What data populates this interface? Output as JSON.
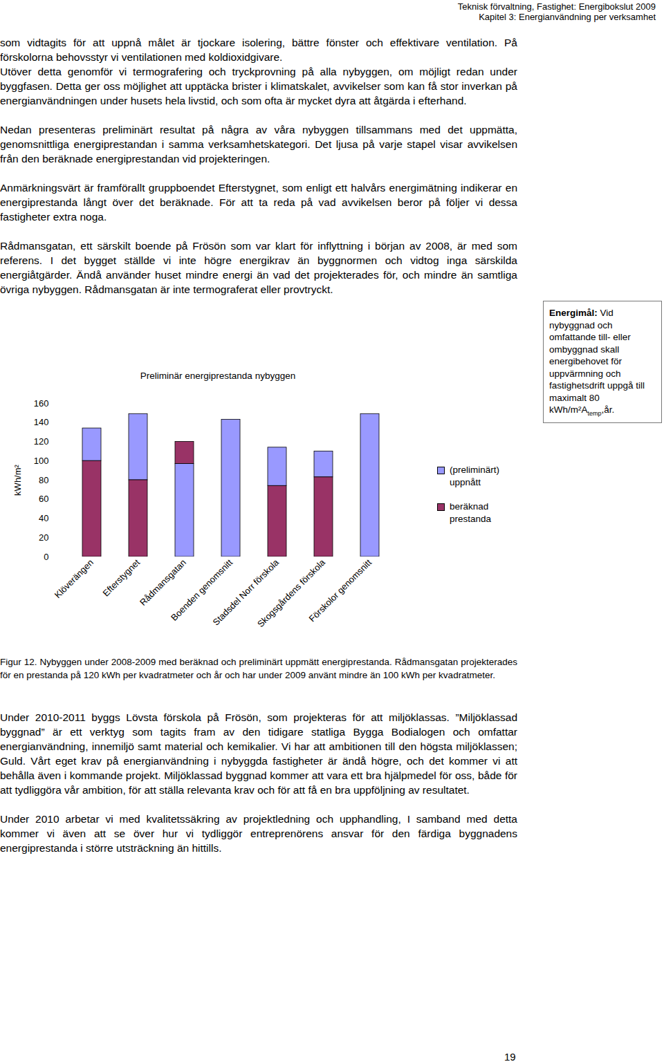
{
  "header": {
    "line1": "Teknisk förvaltning, Fastighet: Energibokslut 2009",
    "line2": "Kapitel 3: Energianvändning per verksamhet"
  },
  "paragraphs_before": [
    "som vidtagits för att uppnå målet är tjockare isolering, bättre fönster och effektivare ventilation. På förskolorna behovsstyr vi ventilationen med koldioxidgivare.",
    "Utöver detta genomför vi termografering och tryckprovning på alla nybyggen, om möjligt redan under byggfasen. Detta ger oss möjlighet att upptäcka brister i klimatskalet, avvikelser som kan få stor inverkan på energianvändningen under husets hela livstid, och som ofta är mycket dyra att åtgärda i efterhand.",
    "Nedan presenteras preliminärt resultat på några av våra nybyggen tillsammans med det uppmätta, genomsnittliga energiprestandan i samma verksamhetskategori. Det ljusa på varje stapel visar avvikelsen från den beräknade energiprestandan vid projekteringen.",
    "Anmärkningsvärt är framförallt gruppboendet Efterstygnet, som enligt ett halvårs energimätning indikerar en energiprestanda långt över det beräknade. För att ta reda på vad avvikelsen beror på följer vi dessa fastigheter extra noga.",
    "Rådmansgatan, ett särskilt boende på Frösön som var klart för inflyttning i början av 2008, är med som referens. I det bygget ställde vi inte högre energikrav än byggnormen och vidtog inga särskilda energiåtgärder. Ändå använder huset mindre energi än vad det projekterades för, och mindre än samtliga övriga nybyggen. Rådmansgatan är inte termograferat eller provtryckt."
  ],
  "sidebar": {
    "label": "Energimål:",
    "text": "Vid nybyggnad och omfattande till- eller ombyggnad skall energibehovet för uppvärmning och fastighetsdrift uppgå till maximalt 80 kWh/m²A",
    "subscript": "temp",
    "text_after": ",år."
  },
  "chart_data": {
    "type": "bar",
    "stacked": true,
    "title": "Preliminär energiprestanda nybyggen",
    "y_label": "kWh/m²",
    "categories": [
      "Klöverängen",
      "Efterstygnet",
      "Rådmansgatan",
      "Boenden genomsnitt",
      "Stadsdel Norr förskola",
      "Skogsgårdens förskola",
      "Förskolor genomsnitt"
    ],
    "series": [
      {
        "name": "(preliminärt) uppnått",
        "color": "#9999ff",
        "values": [
          34,
          69,
          97,
          143,
          40,
          27,
          149
        ]
      },
      {
        "name": "beräknad prestanda",
        "color": "#993366",
        "values": [
          100,
          80,
          23,
          null,
          74,
          83,
          null
        ]
      }
    ],
    "ylim": [
      0,
      160
    ],
    "yticks": [
      0,
      20,
      40,
      60,
      80,
      100,
      120,
      140,
      160
    ],
    "grid": false,
    "legend": "right"
  },
  "caption": {
    "label": "Figur 12.",
    "text": "Nybyggen under 2008-2009 med beräknad och preliminärt uppmätt energiprestanda. Rådmansgatan projekterades för en prestanda på 120 kWh per kvadratmeter och år och har under 2009 använt mindre än 100 kWh per kvadratmeter."
  },
  "paragraphs_after": [
    "Under 2010-2011 byggs Lövsta förskola på Frösön, som projekteras för att miljöklassas. ”Miljöklassad byggnad” är ett verktyg som tagits fram av den tidigare statliga Bygga Bodialogen och omfattar energianvändning, innemiljö samt material och kemikalier. Vi har att ambitionen till den högsta miljöklassen; Guld. Vårt eget krav på energianvändning i nybyggda fastigheter är ändå högre, och det kommer vi att behålla även i kommande projekt. Miljöklassad byggnad kommer att vara ett bra hjälpmedel för oss, både för att tydliggöra vår ambition, för att ställa relevanta krav och för att få en bra uppföljning av resultatet.",
    "Under 2010 arbetar vi med kvalitetssäkring av projektledning och upphandling, I samband med detta kommer vi även att se över hur vi tydliggör entreprenörens ansvar för den färdiga byggnadens energiprestanda i större utsträckning än hittills."
  ],
  "page_number": "19"
}
